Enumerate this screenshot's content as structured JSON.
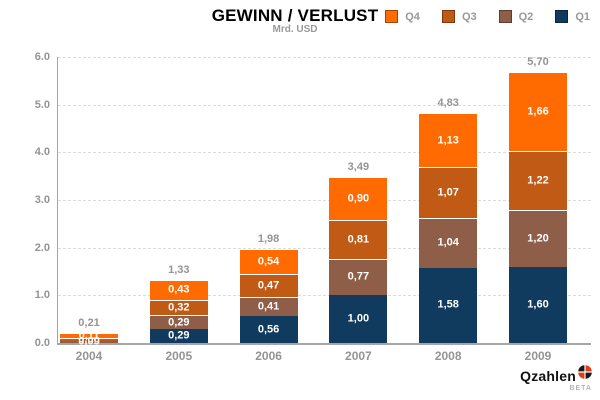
{
  "header": {
    "title": "GEWINN / VERLUST",
    "subtitle": "Mrd. USD"
  },
  "logo": {
    "name": "Qzahlen",
    "beta": "BETA",
    "icon": "four-quadrant-circle-icon",
    "icon_colors": {
      "black": "#1a1a1a",
      "red": "#e63a1a"
    }
  },
  "colors": {
    "q4": "#FF6B00",
    "q3": "#C05A15",
    "q2": "#8F5E49",
    "q1": "#103A5E",
    "grid": "#dcdcdc",
    "axis": "#a6a6a6",
    "muted_text": "#949494"
  },
  "chart_data": {
    "type": "bar",
    "stacked": true,
    "title": "GEWINN / VERLUST",
    "subtitle": "Mrd. USD",
    "categories": [
      "2004",
      "2005",
      "2006",
      "2007",
      "2008",
      "2009"
    ],
    "series": [
      {
        "name": "Q1",
        "color": "#103A5E",
        "values": [
          null,
          0.29,
          0.56,
          1.0,
          1.58,
          1.6
        ],
        "labels": [
          null,
          "0,29",
          "0,56",
          "1,00",
          "1,58",
          "1,60"
        ]
      },
      {
        "name": "Q2",
        "color": "#8F5E49",
        "values": [
          0.05,
          0.29,
          0.41,
          0.77,
          1.04,
          1.2
        ],
        "labels": [
          "0,05",
          "0,29",
          "0,41",
          "0,77",
          "1,04",
          "1,20"
        ]
      },
      {
        "name": "Q3",
        "color": "#C05A15",
        "values": [
          0.06,
          0.32,
          0.47,
          0.81,
          1.07,
          1.22
        ],
        "labels": [
          "0,06",
          "0,32",
          "0,47",
          "0,81",
          "1,07",
          "1,22"
        ]
      },
      {
        "name": "Q4",
        "color": "#FF6B00",
        "values": [
          0.11,
          0.43,
          0.54,
          0.9,
          1.13,
          1.66
        ],
        "labels": [
          "0,11",
          "0,43",
          "0,54",
          "0,90",
          "1,13",
          "1,66"
        ]
      }
    ],
    "totals": [
      "0,21",
      "1,33",
      "1,98",
      "3,49",
      "4,83",
      "5,70"
    ],
    "legend": {
      "order": [
        "Q4",
        "Q3",
        "Q2",
        "Q1"
      ],
      "position": "top-right"
    },
    "ylim": [
      0,
      6
    ],
    "yticks": [
      "0.0",
      "1.0",
      "2.0",
      "3.0",
      "4.0",
      "5.0",
      "6.0"
    ],
    "grid": "dashed-horizontal"
  }
}
